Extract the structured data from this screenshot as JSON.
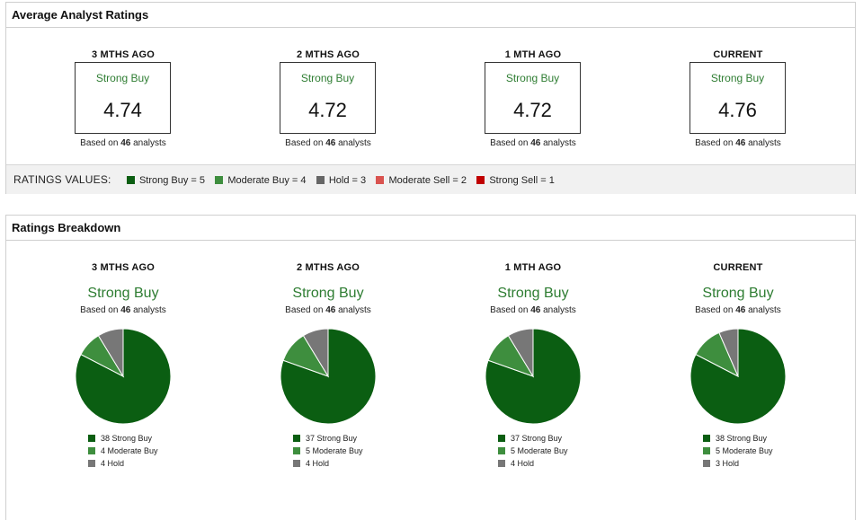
{
  "colors": {
    "strong_buy": "#0b5e12",
    "moderate_buy": "#3e8e3e",
    "hold": "#777777",
    "moderate_sell": "#d9534f",
    "strong_sell": "#c00000",
    "accent_text": "#2e7d32"
  },
  "avg_ratings": {
    "title": "Average Analyst Ratings",
    "periods": [
      {
        "head": "3 MTHS AGO",
        "label": "Strong Buy",
        "value": "4.74",
        "based_prefix": "Based on ",
        "count": "46",
        "based_suffix": " analysts"
      },
      {
        "head": "2 MTHS AGO",
        "label": "Strong Buy",
        "value": "4.72",
        "based_prefix": "Based on ",
        "count": "46",
        "based_suffix": " analysts"
      },
      {
        "head": "1 MTH AGO",
        "label": "Strong Buy",
        "value": "4.72",
        "based_prefix": "Based on ",
        "count": "46",
        "based_suffix": " analysts"
      },
      {
        "head": "CURRENT",
        "label": "Strong Buy",
        "value": "4.76",
        "based_prefix": "Based on ",
        "count": "46",
        "based_suffix": " analysts"
      }
    ],
    "legend": {
      "title": "RATINGS VALUES:",
      "items": [
        {
          "label": "Strong Buy = 5",
          "color": "#0b5e12"
        },
        {
          "label": "Moderate Buy = 4",
          "color": "#3e8e3e"
        },
        {
          "label": "Hold = 3",
          "color": "#666666"
        },
        {
          "label": "Moderate Sell = 2",
          "color": "#d9534f"
        },
        {
          "label": "Strong Sell = 1",
          "color": "#c00000"
        }
      ]
    }
  },
  "breakdown": {
    "title": "Ratings Breakdown",
    "periods": [
      {
        "head": "3 MTHS AGO",
        "rating": "Strong Buy",
        "based_prefix": "Based on ",
        "count": "46",
        "based_suffix": " analysts"
      },
      {
        "head": "2 MTHS AGO",
        "rating": "Strong Buy",
        "based_prefix": "Based on ",
        "count": "46",
        "based_suffix": " analysts"
      },
      {
        "head": "1 MTH AGO",
        "rating": "Strong Buy",
        "based_prefix": "Based on ",
        "count": "46",
        "based_suffix": " analysts"
      },
      {
        "head": "CURRENT",
        "rating": "Strong Buy",
        "based_prefix": "Based on ",
        "count": "46",
        "based_suffix": " analysts"
      }
    ]
  },
  "chart_data": [
    {
      "type": "pie",
      "categories": [
        "Strong Buy",
        "Moderate Buy",
        "Hold"
      ],
      "values": [
        38,
        4,
        4
      ],
      "legend_labels": [
        "38 Strong Buy",
        "4 Moderate Buy",
        "4 Hold"
      ],
      "colors": [
        "#0b5e12",
        "#3e8e3e",
        "#777777"
      ]
    },
    {
      "type": "pie",
      "categories": [
        "Strong Buy",
        "Moderate Buy",
        "Hold"
      ],
      "values": [
        37,
        5,
        4
      ],
      "legend_labels": [
        "37 Strong Buy",
        "5 Moderate Buy",
        "4 Hold"
      ],
      "colors": [
        "#0b5e12",
        "#3e8e3e",
        "#777777"
      ]
    },
    {
      "type": "pie",
      "categories": [
        "Strong Buy",
        "Moderate Buy",
        "Hold"
      ],
      "values": [
        37,
        5,
        4
      ],
      "legend_labels": [
        "37 Strong Buy",
        "5 Moderate Buy",
        "4 Hold"
      ],
      "colors": [
        "#0b5e12",
        "#3e8e3e",
        "#777777"
      ]
    },
    {
      "type": "pie",
      "categories": [
        "Strong Buy",
        "Moderate Buy",
        "Hold"
      ],
      "values": [
        38,
        5,
        3
      ],
      "legend_labels": [
        "38 Strong Buy",
        "5 Moderate Buy",
        "3 Hold"
      ],
      "colors": [
        "#0b5e12",
        "#3e8e3e",
        "#777777"
      ]
    }
  ]
}
